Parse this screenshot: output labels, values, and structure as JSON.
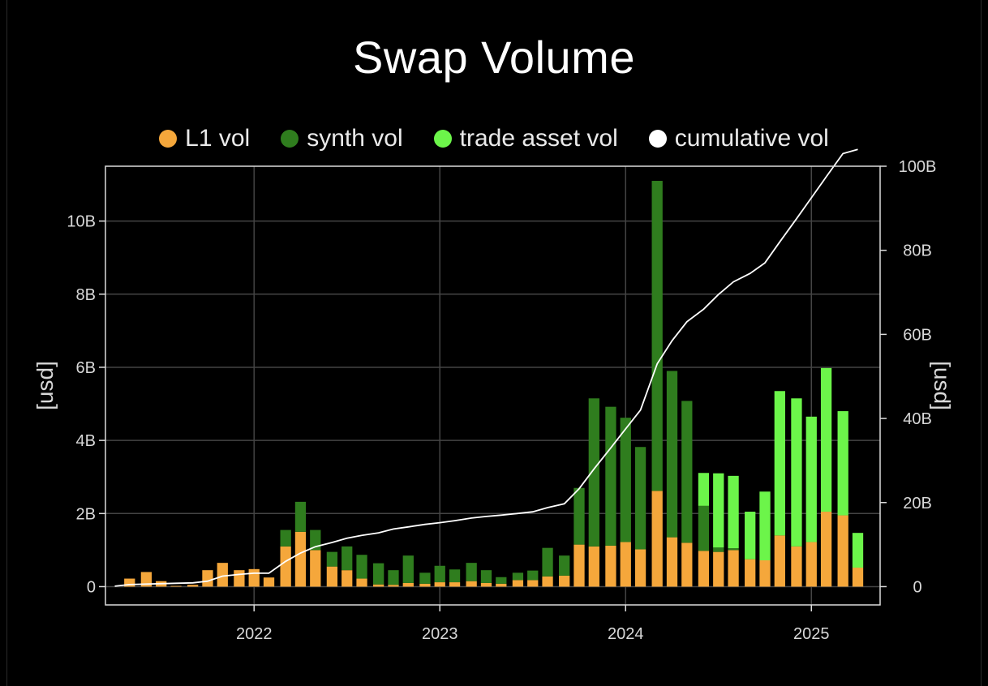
{
  "chart_data": {
    "type": "bar",
    "title": "Swap Volume",
    "legend": [
      {
        "label": "L1 vol",
        "color": "#f5a73b"
      },
      {
        "label": "synth vol",
        "color": "#2f7d1e"
      },
      {
        "label": "trade asset vol",
        "color": "#6cf54a"
      },
      {
        "label": "cumulative vol",
        "color": "#ffffff"
      }
    ],
    "ylabel_left": "[usd]",
    "ylabel_right": "[usd]",
    "y_left_ticks": [
      {
        "v": 0,
        "t": "0"
      },
      {
        "v": 2,
        "t": "2B"
      },
      {
        "v": 4,
        "t": "4B"
      },
      {
        "v": 6,
        "t": "6B"
      },
      {
        "v": 8,
        "t": "8B"
      },
      {
        "v": 10,
        "t": "10B"
      }
    ],
    "y_right_ticks": [
      {
        "v": 0,
        "t": "0"
      },
      {
        "v": 20,
        "t": "20B"
      },
      {
        "v": 40,
        "t": "40B"
      },
      {
        "v": 60,
        "t": "60B"
      },
      {
        "v": 80,
        "t": "80B"
      },
      {
        "v": 100,
        "t": "100B"
      }
    ],
    "x_ticks": [
      {
        "v": 2022,
        "t": "2022"
      },
      {
        "v": 2023,
        "t": "2023"
      },
      {
        "v": 2024,
        "t": "2024"
      },
      {
        "v": 2025,
        "t": "2025"
      }
    ],
    "xlim": [
      2021.2,
      2025.37
    ],
    "ylim_left": [
      -0.5,
      11.5
    ],
    "ylim_right": [
      -4.35,
      100.0
    ],
    "bar_width_years": 0.058,
    "series": [
      {
        "name": "L1 vol",
        "x": [
          2021.33,
          2021.42,
          2021.5,
          2021.58,
          2021.67,
          2021.75,
          2021.83,
          2021.92,
          2022.0,
          2022.08,
          2022.17,
          2022.25,
          2022.33,
          2022.42,
          2022.5,
          2022.58,
          2022.67,
          2022.75,
          2022.83,
          2022.92,
          2023.0,
          2023.08,
          2023.17,
          2023.25,
          2023.33,
          2023.42,
          2023.5,
          2023.58,
          2023.67,
          2023.75,
          2023.83,
          2023.92,
          2024.0,
          2024.08,
          2024.17,
          2024.25,
          2024.33,
          2024.42,
          2024.5,
          2024.58,
          2024.67,
          2024.75,
          2024.83,
          2024.92,
          2025.0,
          2025.08,
          2025.17,
          2025.25
        ],
        "values": [
          0.22,
          0.4,
          0.15,
          0.02,
          0.05,
          0.45,
          0.65,
          0.45,
          0.48,
          0.25,
          1.1,
          1.5,
          1.0,
          0.55,
          0.45,
          0.22,
          0.06,
          0.05,
          0.1,
          0.08,
          0.12,
          0.12,
          0.15,
          0.1,
          0.08,
          0.18,
          0.18,
          0.28,
          0.3,
          1.15,
          1.1,
          1.12,
          1.22,
          1.02,
          2.62,
          1.35,
          1.2,
          0.98,
          0.95,
          1.0,
          0.75,
          0.72,
          1.4,
          1.1,
          1.22,
          2.05,
          1.95,
          0.52
        ]
      },
      {
        "name": "synth vol",
        "x": [
          2021.33,
          2021.42,
          2021.5,
          2021.58,
          2021.67,
          2021.75,
          2021.83,
          2021.92,
          2022.0,
          2022.08,
          2022.17,
          2022.25,
          2022.33,
          2022.42,
          2022.5,
          2022.58,
          2022.67,
          2022.75,
          2022.83,
          2022.92,
          2023.0,
          2023.08,
          2023.17,
          2023.25,
          2023.33,
          2023.42,
          2023.5,
          2023.58,
          2023.67,
          2023.75,
          2023.83,
          2023.92,
          2024.0,
          2024.08,
          2024.17,
          2024.25,
          2024.33,
          2024.42,
          2024.5,
          2024.58,
          2024.67,
          2024.75,
          2024.83,
          2024.92,
          2025.0,
          2025.08,
          2025.17,
          2025.25
        ],
        "values": [
          0,
          0,
          0,
          0,
          0,
          0,
          0,
          0,
          0,
          0,
          0.45,
          0.82,
          0.55,
          0.4,
          0.65,
          0.65,
          0.58,
          0.4,
          0.75,
          0.3,
          0.45,
          0.35,
          0.5,
          0.35,
          0.18,
          0.2,
          0.26,
          0.78,
          0.55,
          1.55,
          4.05,
          3.8,
          3.4,
          2.8,
          8.48,
          4.55,
          3.88,
          1.23,
          0.12,
          0.05,
          0,
          0,
          0,
          0,
          0,
          0,
          0,
          0
        ]
      },
      {
        "name": "trade asset vol",
        "x": [
          2021.33,
          2021.42,
          2021.5,
          2021.58,
          2021.67,
          2021.75,
          2021.83,
          2021.92,
          2022.0,
          2022.08,
          2022.17,
          2022.25,
          2022.33,
          2022.42,
          2022.5,
          2022.58,
          2022.67,
          2022.75,
          2022.83,
          2022.92,
          2023.0,
          2023.08,
          2023.17,
          2023.25,
          2023.33,
          2023.42,
          2023.5,
          2023.58,
          2023.67,
          2023.75,
          2023.83,
          2023.92,
          2024.0,
          2024.08,
          2024.17,
          2024.25,
          2024.33,
          2024.42,
          2024.5,
          2024.58,
          2024.67,
          2024.75,
          2024.83,
          2024.92,
          2025.0,
          2025.08,
          2025.17,
          2025.25
        ],
        "values": [
          0,
          0,
          0,
          0,
          0,
          0,
          0,
          0,
          0,
          0,
          0,
          0,
          0,
          0,
          0,
          0,
          0,
          0,
          0,
          0,
          0,
          0,
          0,
          0,
          0,
          0,
          0,
          0,
          0,
          0,
          0,
          0,
          0,
          0,
          0,
          0,
          0,
          0.9,
          2.03,
          1.98,
          1.3,
          1.88,
          3.95,
          4.05,
          3.43,
          3.93,
          2.85,
          0.95
        ]
      },
      {
        "name": "cumulative vol",
        "type": "line",
        "x": [
          2021.25,
          2021.33,
          2021.42,
          2021.5,
          2021.58,
          2021.67,
          2021.75,
          2021.83,
          2021.92,
          2022.0,
          2022.08,
          2022.17,
          2022.25,
          2022.33,
          2022.42,
          2022.5,
          2022.58,
          2022.67,
          2022.75,
          2022.83,
          2022.92,
          2023.0,
          2023.08,
          2023.17,
          2023.25,
          2023.33,
          2023.42,
          2023.5,
          2023.58,
          2023.67,
          2023.75,
          2023.83,
          2023.92,
          2024.0,
          2024.08,
          2024.17,
          2024.25,
          2024.33,
          2024.42,
          2024.5,
          2024.58,
          2024.67,
          2024.75,
          2024.83,
          2024.92,
          2025.0,
          2025.08,
          2025.17,
          2025.25
        ],
        "values": [
          0.1,
          0.5,
          0.6,
          0.7,
          0.8,
          0.9,
          1.3,
          2.5,
          2.9,
          3.2,
          3.2,
          6.0,
          8.0,
          9.5,
          10.5,
          11.5,
          12.2,
          12.8,
          13.7,
          14.2,
          14.8,
          15.2,
          15.7,
          16.3,
          16.7,
          17.0,
          17.4,
          17.8,
          18.8,
          19.7,
          23.3,
          28.0,
          33.0,
          37.5,
          42.0,
          53.0,
          58.5,
          63.0,
          66.0,
          69.5,
          72.5,
          74.5,
          77.0,
          82.0,
          87.5,
          92.5,
          97.5,
          103.0,
          104.0
        ]
      }
    ]
  }
}
